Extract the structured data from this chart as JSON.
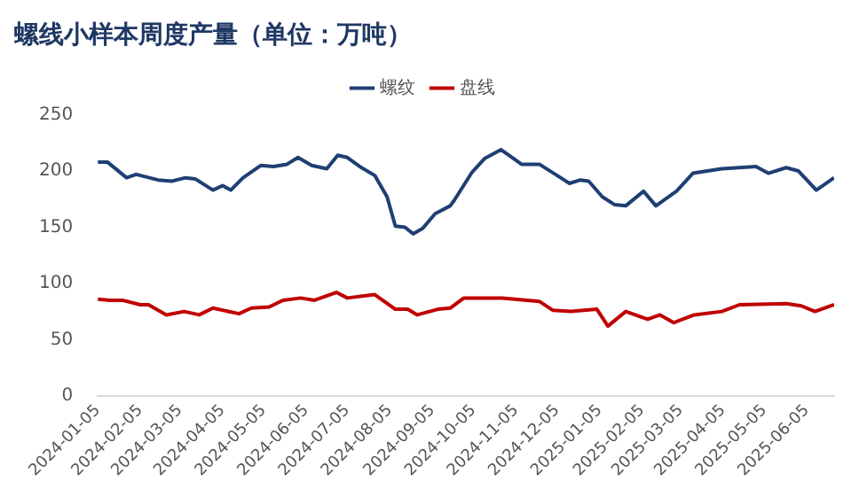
{
  "chart_data": {
    "type": "line",
    "title": "螺线小样本周度产量（单位：万吨）",
    "legend": "top",
    "grid": false,
    "marker": "none",
    "line_style": "solid",
    "xlim": [
      "2024-01-05",
      "2025-06-25"
    ],
    "xticks": [
      "2024-01-05",
      "2024-02-05",
      "2024-03-05",
      "2024-04-05",
      "2024-05-05",
      "2024-06-05",
      "2024-07-05",
      "2024-08-05",
      "2024-09-05",
      "2024-10-05",
      "2024-11-05",
      "2024-12-05",
      "2025-01-05",
      "2025-02-05",
      "2025-03-05",
      "2025-04-05",
      "2025-05-05",
      "2025-06-05"
    ],
    "ylim": [
      0,
      250
    ],
    "yticks": [
      0,
      50,
      100,
      150,
      200,
      250
    ],
    "series": [
      {
        "name": "螺纹",
        "color": "#1f3f73",
        "x": [
          "2024-01-05",
          "2024-01-12",
          "2024-01-26",
          "2024-02-02",
          "2024-02-18",
          "2024-02-28",
          "2024-03-09",
          "2024-03-16",
          "2024-03-29",
          "2024-04-05",
          "2024-04-11",
          "2024-04-20",
          "2024-05-03",
          "2024-05-12",
          "2024-05-22",
          "2024-05-30",
          "2024-06-09",
          "2024-06-20",
          "2024-06-28",
          "2024-07-05",
          "2024-07-14",
          "2024-07-25",
          "2024-08-03",
          "2024-08-09",
          "2024-08-16",
          "2024-08-22",
          "2024-08-29",
          "2024-09-07",
          "2024-09-18",
          "2024-09-21",
          "2024-10-04",
          "2024-10-13",
          "2024-10-25",
          "2024-11-09",
          "2024-11-22",
          "2024-12-05",
          "2024-12-14",
          "2024-12-22",
          "2024-12-28",
          "2025-01-07",
          "2025-01-16",
          "2025-01-24",
          "2025-02-06",
          "2025-02-15",
          "2025-03-02",
          "2025-03-14",
          "2025-04-04",
          "2025-04-29",
          "2025-05-08",
          "2025-05-21",
          "2025-05-30",
          "2025-06-12",
          "2025-06-25"
        ],
        "values": [
          208,
          208,
          194,
          197,
          192,
          191,
          194,
          193,
          183,
          187,
          183,
          194,
          205,
          204,
          206,
          212,
          205,
          202,
          214,
          212,
          204,
          196,
          177,
          151,
          150,
          144,
          149,
          162,
          169,
          174,
          199,
          211,
          219,
          206,
          206,
          196,
          189,
          192,
          191,
          177,
          170,
          169,
          182,
          169,
          182,
          198,
          202,
          204,
          198,
          203,
          200,
          183,
          194
        ]
      },
      {
        "name": "盘线",
        "color": "#c00000",
        "x": [
          "2024-01-05",
          "2024-01-14",
          "2024-01-23",
          "2024-02-05",
          "2024-02-11",
          "2024-02-24",
          "2024-03-08",
          "2024-03-19",
          "2024-03-29",
          "2024-04-17",
          "2024-04-26",
          "2024-05-09",
          "2024-05-19",
          "2024-06-01",
          "2024-06-11",
          "2024-06-27",
          "2024-07-05",
          "2024-07-25",
          "2024-08-09",
          "2024-08-18",
          "2024-08-25",
          "2024-09-09",
          "2024-09-18",
          "2024-09-28",
          "2024-10-26",
          "2024-11-22",
          "2024-12-02",
          "2024-12-15",
          "2025-01-03",
          "2025-01-11",
          "2025-01-24",
          "2025-02-09",
          "2025-02-18",
          "2025-02-28",
          "2025-03-15",
          "2025-04-04",
          "2025-04-17",
          "2025-05-21",
          "2025-06-01",
          "2025-06-11",
          "2025-06-25"
        ],
        "values": [
          86,
          85,
          85,
          81,
          81,
          72,
          75,
          72,
          78,
          73,
          78,
          79,
          85,
          87,
          85,
          92,
          87,
          90,
          77,
          77,
          72,
          77,
          78,
          87,
          87,
          84,
          76,
          75,
          77,
          62,
          75,
          68,
          72,
          65,
          72,
          75,
          81,
          82,
          80,
          75,
          81
        ]
      }
    ]
  }
}
